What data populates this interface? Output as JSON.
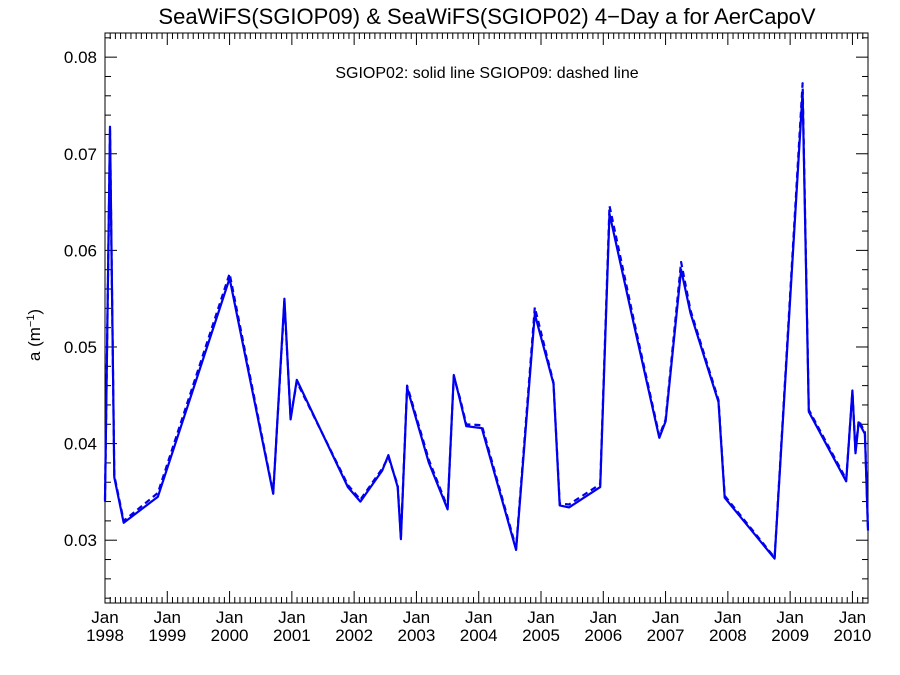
{
  "chart_data": {
    "type": "line",
    "title": "SeaWiFS(SGIOP09) & SeaWiFS(SGIOP02) 4−Day a for AerCapoV",
    "annotation": "SGIOP02: solid line   SGIOP09: dashed line",
    "ylabel": "a (m",
    "ylabel_sup": "−1",
    "ylabel_close": ")",
    "xlim": [
      1998.0,
      2010.25
    ],
    "ylim": [
      0.0235,
      0.0825
    ],
    "yticks": [
      0.03,
      0.04,
      0.05,
      0.06,
      0.07,
      0.08
    ],
    "ytick_labels": [
      "0.03",
      "0.04",
      "0.05",
      "0.06",
      "0.07",
      "0.08"
    ],
    "xticks": [
      1998,
      1999,
      2000,
      2001,
      2002,
      2003,
      2004,
      2005,
      2006,
      2007,
      2008,
      2009,
      2010
    ],
    "xtick_labels_top": [
      "Jan",
      "Jan",
      "Jan",
      "Jan",
      "Jan",
      "Jan",
      "Jan",
      "Jan",
      "Jan",
      "Jan",
      "Jan",
      "Jan",
      "Jan"
    ],
    "xtick_labels_bottom": [
      "1998",
      "1999",
      "2000",
      "2001",
      "2002",
      "2003",
      "2004",
      "2005",
      "2006",
      "2007",
      "2008",
      "2009",
      "2010"
    ],
    "color": "#0000ee",
    "series": [
      {
        "name": "SGIOP02",
        "style": "solid",
        "x": [
          1998.0,
          1998.08,
          1998.15,
          1998.3,
          1998.85,
          2000.0,
          2000.7,
          2000.88,
          2000.98,
          2001.08,
          2001.9,
          2002.1,
          2002.45,
          2002.55,
          2002.7,
          2002.75,
          2002.85,
          2003.2,
          2003.5,
          2003.6,
          2003.7,
          2003.8,
          2004.05,
          2004.6,
          2004.9,
          2005.2,
          2005.3,
          2005.45,
          2005.95,
          2006.1,
          2006.5,
          2006.9,
          2007.0,
          2007.25,
          2007.4,
          2007.85,
          2007.95,
          2008.75,
          2009.2,
          2009.3,
          2009.9,
          2010.0,
          2010.05,
          2010.1,
          2010.2,
          2010.25
        ],
        "y": [
          0.034,
          0.0728,
          0.0365,
          0.0318,
          0.0345,
          0.0571,
          0.0348,
          0.055,
          0.0425,
          0.0466,
          0.0355,
          0.034,
          0.0372,
          0.0388,
          0.0355,
          0.0301,
          0.0458,
          0.038,
          0.0332,
          0.0471,
          0.0445,
          0.0418,
          0.0416,
          0.029,
          0.0534,
          0.0462,
          0.0336,
          0.0334,
          0.0355,
          0.0638,
          0.0521,
          0.0406,
          0.0423,
          0.058,
          0.0535,
          0.0443,
          0.0344,
          0.0281,
          0.0764,
          0.0433,
          0.0361,
          0.0455,
          0.039,
          0.0422,
          0.041,
          0.031
        ]
      },
      {
        "name": "SGIOP09",
        "style": "dashed",
        "x": [
          1998.0,
          1998.08,
          1998.15,
          1998.3,
          1998.85,
          2000.0,
          2000.7,
          2000.88,
          2000.98,
          2001.08,
          2001.9,
          2002.1,
          2002.45,
          2002.55,
          2002.7,
          2002.75,
          2002.85,
          2003.2,
          2003.5,
          2003.6,
          2003.7,
          2003.8,
          2004.05,
          2004.6,
          2004.9,
          2005.2,
          2005.3,
          2005.45,
          2005.95,
          2006.1,
          2006.5,
          2006.9,
          2007.0,
          2007.25,
          2007.4,
          2007.85,
          2007.95,
          2008.75,
          2009.2,
          2009.3,
          2009.9,
          2010.0,
          2010.05,
          2010.1,
          2010.2,
          2010.25
        ],
        "y": [
          0.0342,
          0.0725,
          0.0367,
          0.032,
          0.0349,
          0.0576,
          0.0349,
          0.0547,
          0.0427,
          0.0464,
          0.0357,
          0.0342,
          0.0374,
          0.0386,
          0.0357,
          0.0303,
          0.046,
          0.0383,
          0.0334,
          0.0469,
          0.0447,
          0.042,
          0.0419,
          0.0292,
          0.0541,
          0.0463,
          0.0338,
          0.0337,
          0.0358,
          0.0646,
          0.0525,
          0.0408,
          0.0425,
          0.0588,
          0.0538,
          0.0445,
          0.0346,
          0.0282,
          0.0773,
          0.0435,
          0.0363,
          0.0453,
          0.0392,
          0.0424,
          0.0412,
          0.0312
        ]
      }
    ]
  }
}
